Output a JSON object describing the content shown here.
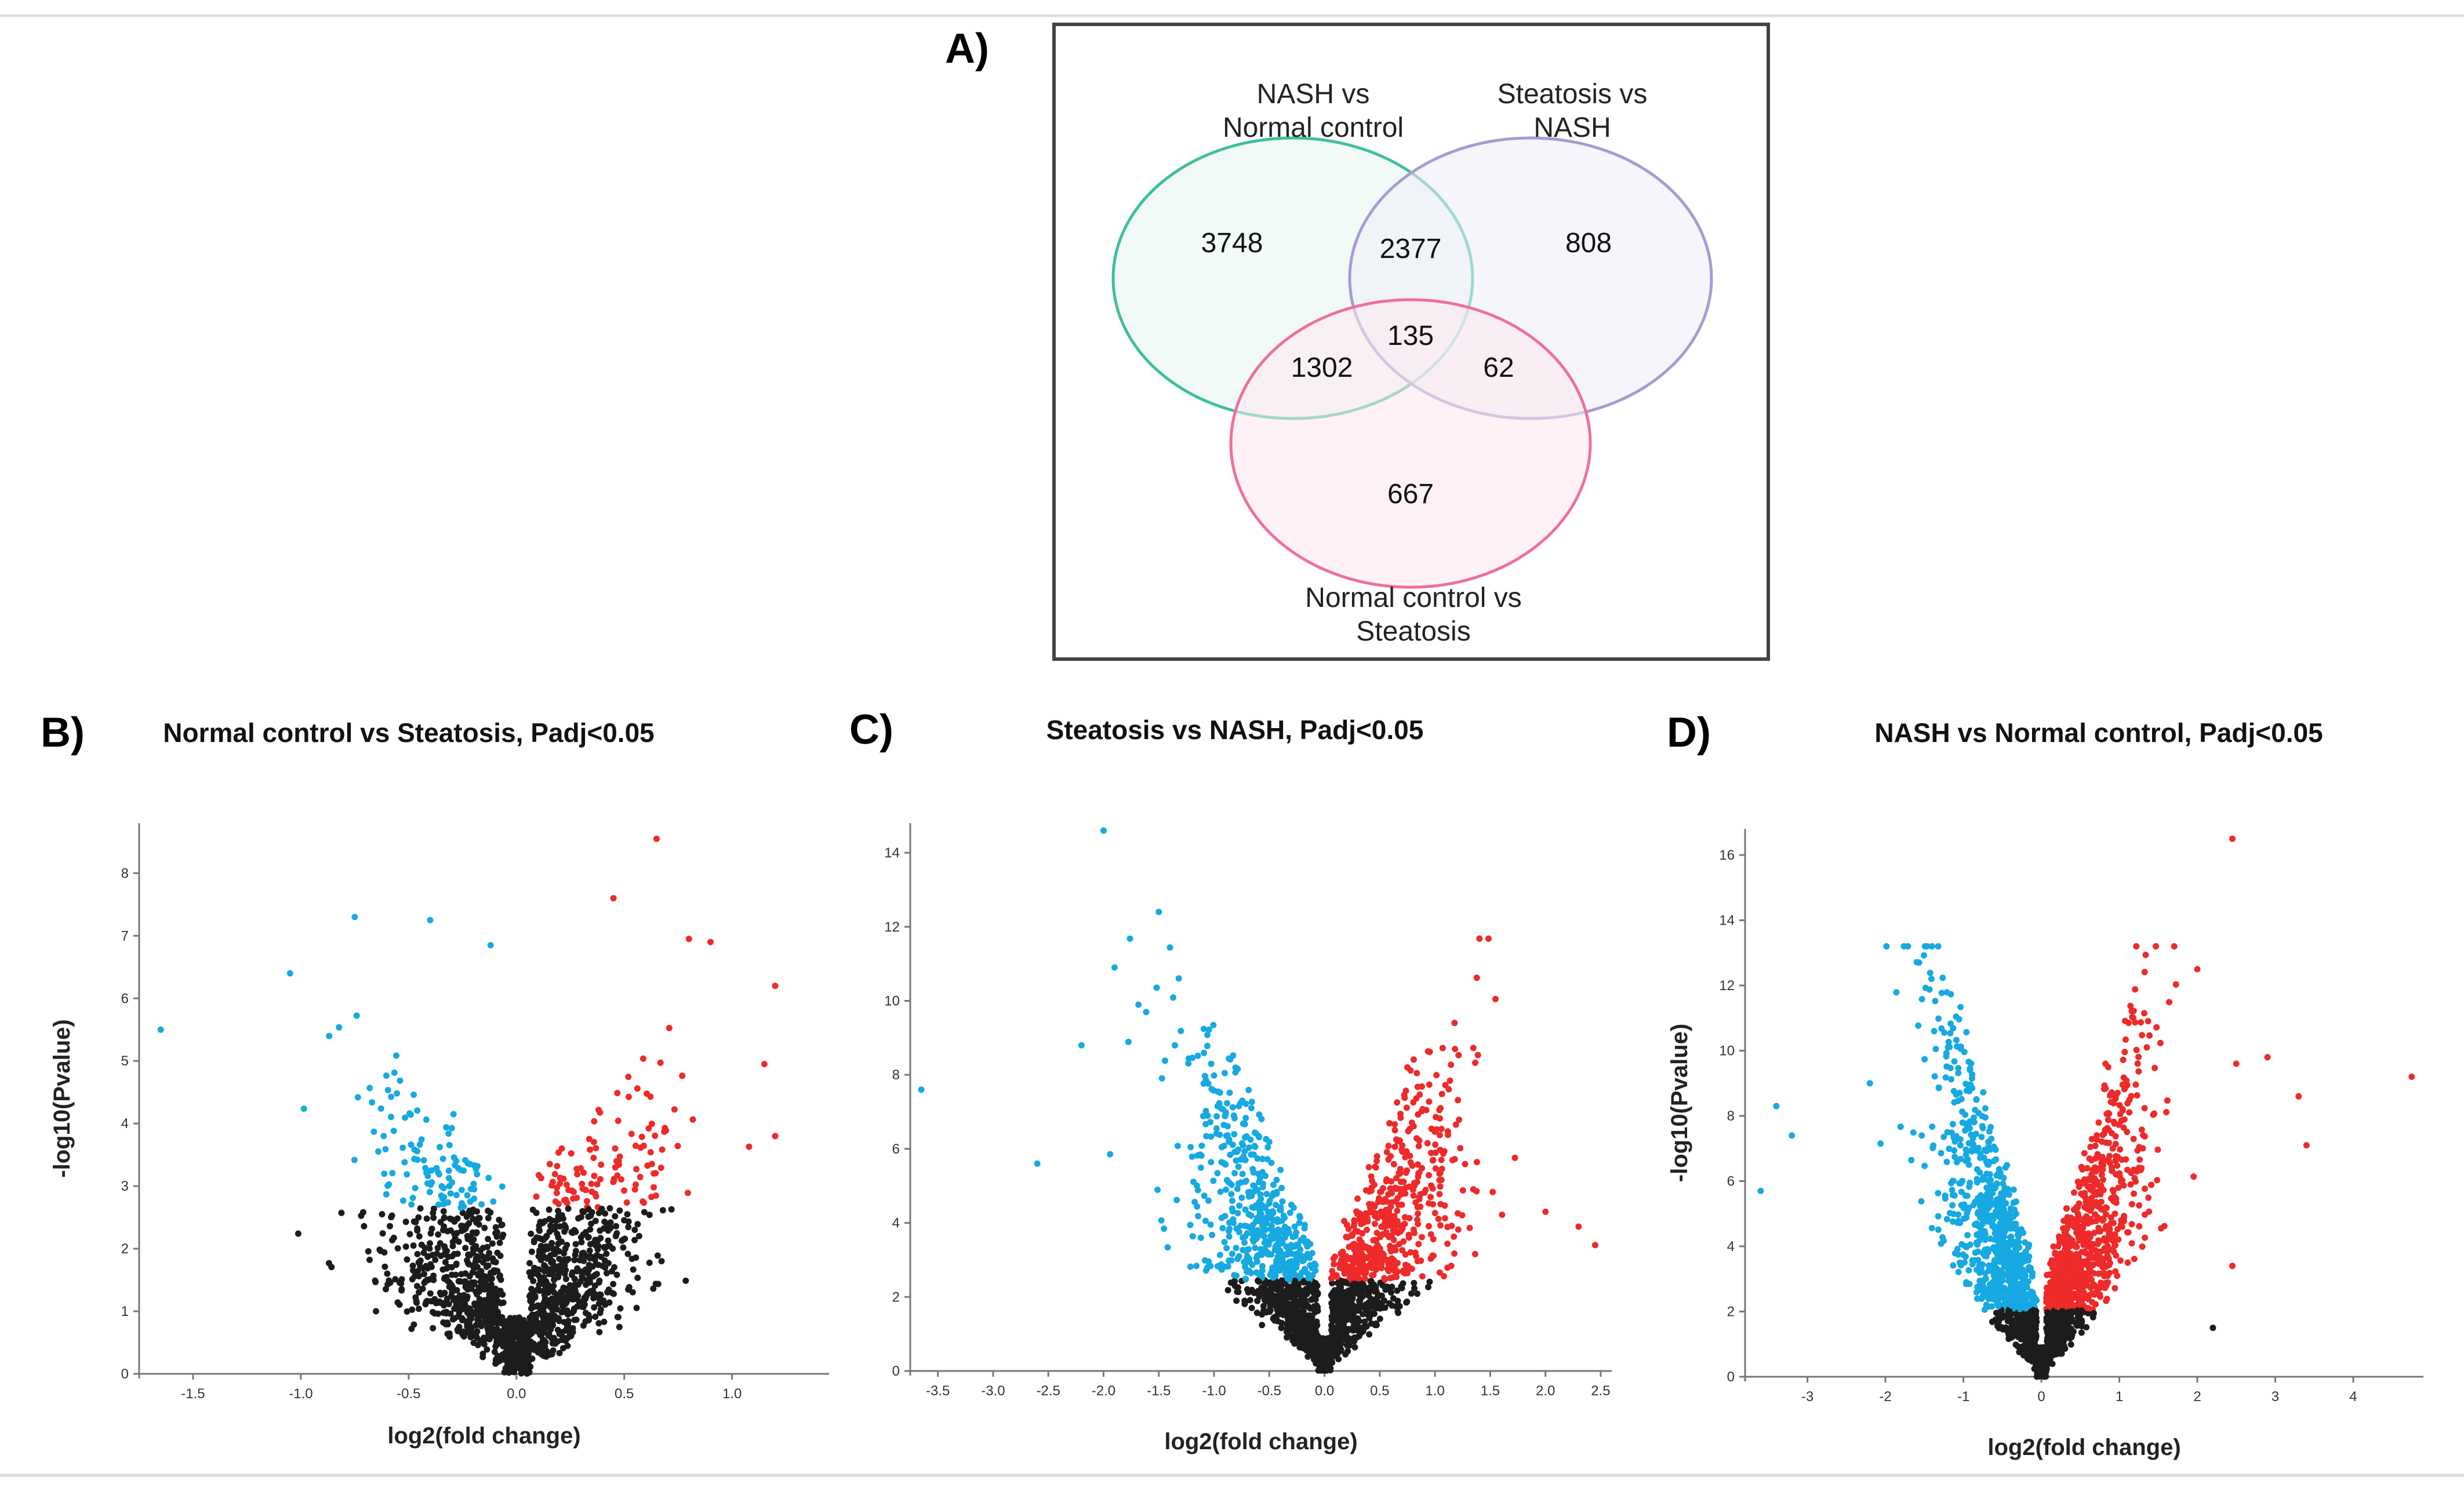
{
  "venn": {
    "panel_label": "A)",
    "sets": [
      {
        "label_lines": [
          "NASH vs",
          "Normal control"
        ],
        "color": "#3fbf9f",
        "fill": "#e6f5f1"
      },
      {
        "label_lines": [
          "Steatosis vs",
          "NASH"
        ],
        "color": "#a79bd1",
        "fill": "#efedf7"
      },
      {
        "label_lines": [
          "Normal control vs",
          "Steatosis"
        ],
        "color": "#ee6fa3",
        "fill": "#fde7f1"
      }
    ],
    "regions": {
      "only_nash_normal": "3748",
      "only_steatosis_nash": "808",
      "only_normal_steatosis": "667",
      "nash_normal_and_steatosis_nash": "2377",
      "nash_normal_and_normal_steatosis": "1302",
      "steatosis_nash_and_normal_steatosis": "62",
      "all_three": "135"
    }
  },
  "colors": {
    "down": "#17a9e1",
    "up": "#ee2a2a",
    "ns": "#1c1c1c"
  },
  "chart_data": [
    {
      "type": "scatter",
      "panel_label": "B)",
      "title": "Normal control vs Steatosis, Padj<0.05",
      "xlabel": "log2(fold change)",
      "ylabel": "-log10(Pvalue)",
      "xlim": [
        -1.75,
        1.45
      ],
      "ylim": [
        0,
        8.8
      ],
      "xticks": [
        "-1.5",
        "-1.0",
        "-0.5",
        "0.0",
        "0.5",
        "1.0"
      ],
      "xtick_values": [
        -1.5,
        -1.0,
        -0.5,
        0.0,
        0.5,
        1.0
      ],
      "yticks": [
        "0",
        "1",
        "2",
        "3",
        "4",
        "5",
        "6",
        "7",
        "8"
      ],
      "ytick_values": [
        0,
        1,
        2,
        3,
        4,
        5,
        6,
        7,
        8
      ],
      "sig_threshold_y": 2.65,
      "fc_threshold": 0.05,
      "n_points": 1500,
      "spread_x": 0.3,
      "max_x": 1.4,
      "y_max_point": 8.5,
      "y_scale": 4.0,
      "extra_points": [
        [
          -1.65,
          5.5
        ],
        [
          -1.05,
          6.4
        ],
        [
          -0.75,
          7.3
        ],
        [
          -0.4,
          7.25
        ],
        [
          -0.12,
          6.85
        ],
        [
          0.65,
          8.55
        ],
        [
          0.8,
          6.95
        ],
        [
          0.9,
          6.9
        ],
        [
          1.2,
          6.2
        ],
        [
          1.15,
          4.95
        ],
        [
          1.2,
          3.8
        ],
        [
          0.45,
          7.6
        ]
      ]
    },
    {
      "type": "scatter",
      "panel_label": "C)",
      "title": "Steatosis vs NASH, Padj<0.05",
      "xlabel": "log2(fold change)",
      "ylabel": "",
      "xlim": [
        -3.75,
        2.6
      ],
      "ylim": [
        0,
        14.8
      ],
      "xticks": [
        "-3.5",
        "-3.0",
        "-2.5",
        "-2.0",
        "-1.5",
        "-1.0",
        "-0.5",
        "0.0",
        "0.5",
        "1.0",
        "1.5",
        "2.0",
        "2.5"
      ],
      "xtick_values": [
        -3.5,
        -3.0,
        -2.5,
        -2.0,
        -1.5,
        -1.0,
        -0.5,
        0.0,
        0.5,
        1.0,
        1.5,
        2.0,
        2.5
      ],
      "yticks": [
        "0",
        "2",
        "4",
        "6",
        "8",
        "10",
        "12",
        "14"
      ],
      "ytick_values": [
        0,
        2,
        4,
        6,
        8,
        10,
        12,
        14
      ],
      "sig_threshold_y": 2.45,
      "fc_threshold": 0.05,
      "n_points": 1900,
      "spread_x": 0.55,
      "max_x": 2.5,
      "y_max_point": 14.6,
      "y_scale": 6.0,
      "extra_points": [
        [
          -3.65,
          7.6
        ],
        [
          -2.6,
          5.6
        ],
        [
          -2.0,
          14.6
        ],
        [
          -1.5,
          12.4
        ],
        [
          -1.9,
          10.9
        ],
        [
          -2.2,
          8.8
        ],
        [
          2.0,
          4.3
        ],
        [
          2.45,
          3.4
        ],
        [
          2.3,
          3.9
        ],
        [
          1.05,
          7.1
        ],
        [
          0.75,
          8.2
        ]
      ]
    },
    {
      "type": "scatter",
      "panel_label": "D)",
      "title": "NASH vs Normal control, Padj<0.05",
      "xlabel": "log2(fold change)",
      "ylabel": "-log10(Pvalue)",
      "xlim": [
        -3.8,
        4.9
      ],
      "ylim": [
        0,
        16.8
      ],
      "xticks": [
        "-3",
        "-2",
        "-1",
        "0",
        "1",
        "2",
        "3",
        "4"
      ],
      "xtick_values": [
        -3,
        -2,
        -1,
        0,
        1,
        2,
        3,
        4
      ],
      "yticks": [
        "0",
        "2",
        "4",
        "6",
        "8",
        "10",
        "12",
        "14",
        "16"
      ],
      "ytick_values": [
        0,
        2,
        4,
        6,
        8,
        10,
        12,
        14,
        16
      ],
      "sig_threshold_y": 2.05,
      "fc_threshold": 0.05,
      "n_points": 2300,
      "spread_x": 0.6,
      "max_x": 4.8,
      "y_max_point": 16.5,
      "y_scale": 7.0,
      "extra_points": [
        [
          -3.6,
          5.7
        ],
        [
          -3.4,
          8.3
        ],
        [
          -3.2,
          7.4
        ],
        [
          -2.2,
          9.0
        ],
        [
          2.45,
          16.5
        ],
        [
          2.0,
          12.5
        ],
        [
          2.5,
          9.6
        ],
        [
          2.9,
          9.8
        ],
        [
          3.3,
          8.6
        ],
        [
          3.4,
          7.1
        ],
        [
          4.75,
          9.2
        ],
        [
          2.2,
          1.5
        ],
        [
          2.45,
          3.4
        ]
      ]
    }
  ]
}
